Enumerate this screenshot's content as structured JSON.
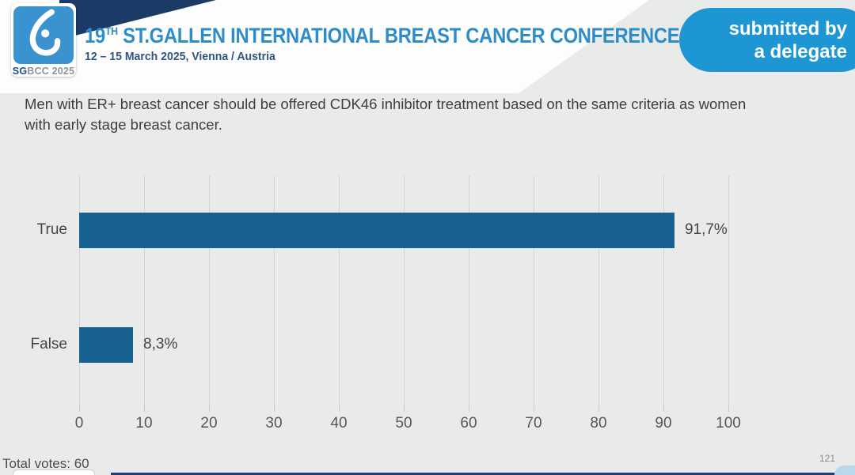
{
  "header": {
    "logo_text_bold": "SG",
    "logo_text_rest": "BCC 2025",
    "title_number": "19",
    "title_ordinal": "TH",
    "title_main": " ST.GALLEN INTERNATIONAL BREAST CANCER CONFERENCE 2025",
    "subtitle": "12 – 15 March 2025, Vienna / Austria",
    "badge_line1": "submitted by",
    "badge_line2": "a delegate"
  },
  "question": "Men with ER+ breast cancer should be offered CDK46 inhibitor treatment based on the same criteria as women with early stage breast cancer.",
  "chart_data": {
    "type": "bar",
    "orientation": "horizontal",
    "categories": [
      "True",
      "False"
    ],
    "values": [
      91.7,
      8.3
    ],
    "value_labels": [
      "91,7%",
      "8,3%"
    ],
    "xlim": [
      0,
      100
    ],
    "xticks": [
      0,
      10,
      20,
      30,
      40,
      50,
      60,
      70,
      80,
      90,
      100
    ],
    "grid": true,
    "legend": false,
    "bar_color": "#16618f",
    "title": "",
    "xlabel": "",
    "ylabel": ""
  },
  "footer": {
    "total_votes": "Total votes: 60",
    "page_number": "121"
  },
  "colors": {
    "accent_blue": "#1e96d4",
    "title_blue": "#2e8dc8",
    "navy": "#1c3a66",
    "bar_blue": "#16618f",
    "background": "#e9eaea"
  }
}
